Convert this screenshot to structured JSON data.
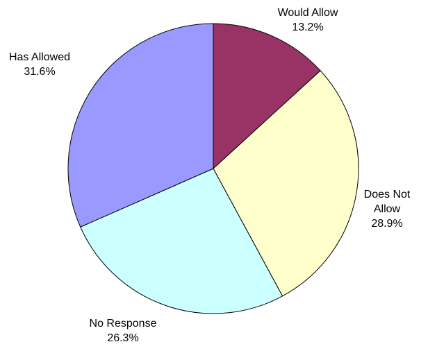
{
  "chart_data": {
    "type": "pie",
    "title": "",
    "slices": [
      {
        "label_lines": [
          "Would Allow"
        ],
        "value": 13.2,
        "value_label": "13.2%",
        "color": "#993366"
      },
      {
        "label_lines": [
          "Does Not",
          "Allow"
        ],
        "value": 28.9,
        "value_label": "28.9%",
        "color": "#FFFFCC"
      },
      {
        "label_lines": [
          "No Response"
        ],
        "value": 26.3,
        "value_label": "26.3%",
        "color": "#CCFFFF"
      },
      {
        "label_lines": [
          "Has Allowed"
        ],
        "value": 31.6,
        "value_label": "31.6%",
        "color": "#9999FF"
      }
    ],
    "start_angle_deg": 0,
    "direction": "clockwise",
    "legend": "none",
    "slice_border_color": "#000000"
  }
}
